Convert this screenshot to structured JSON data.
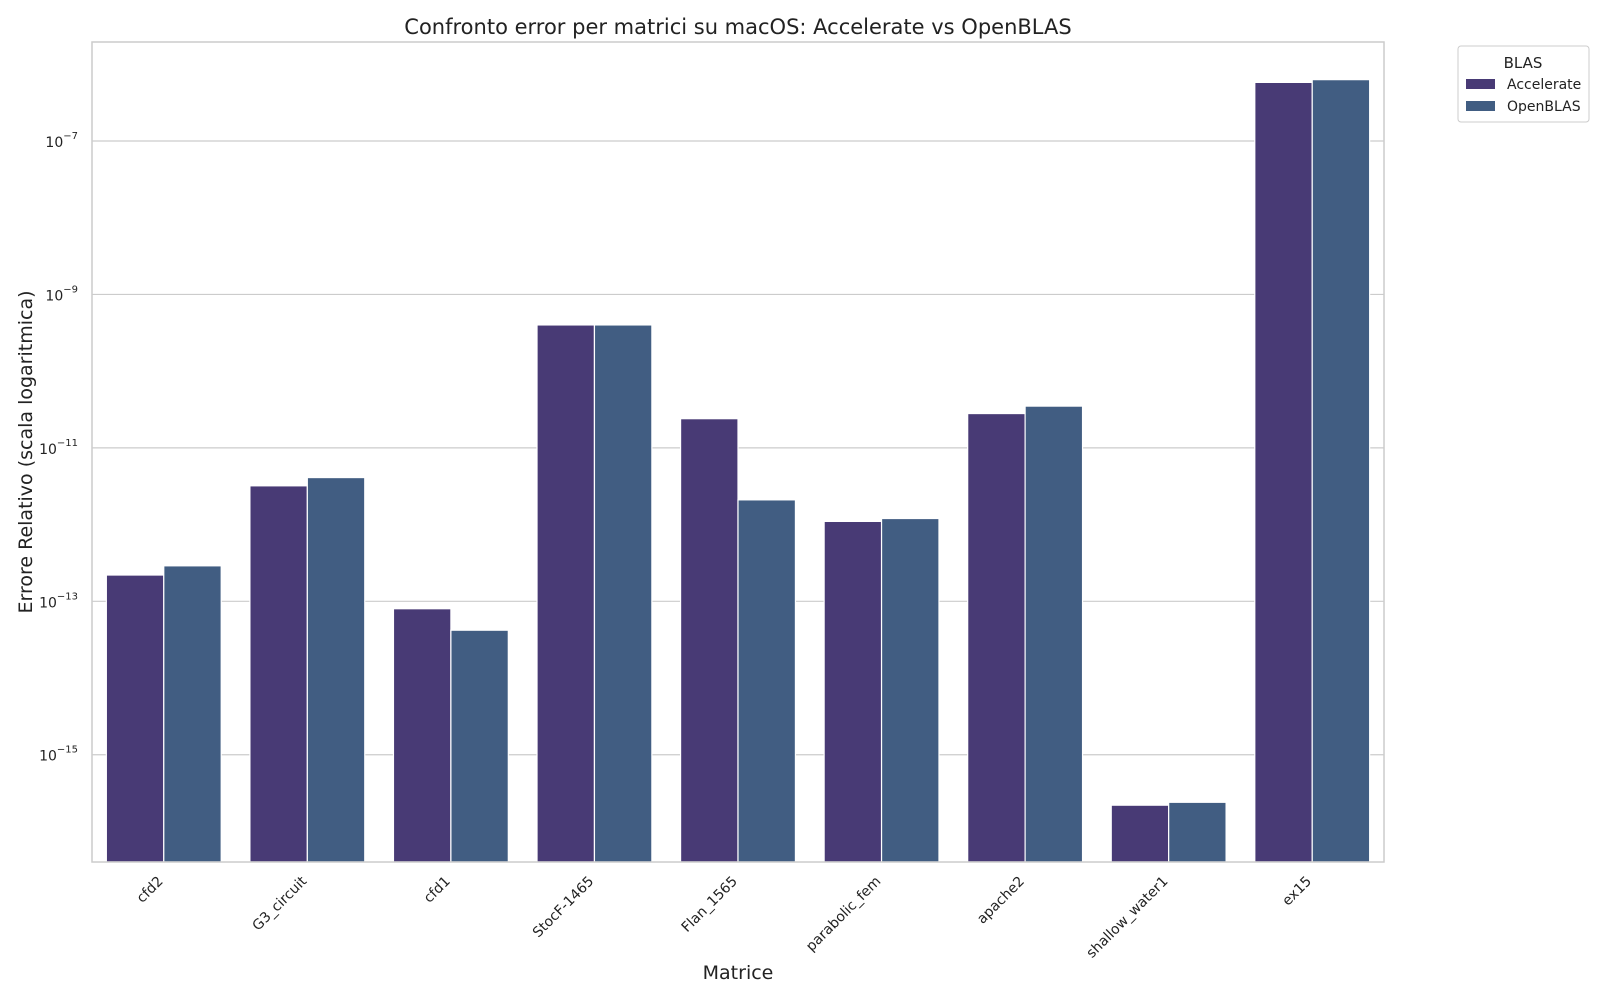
{
  "chart_data": {
    "type": "bar",
    "title": "Confronto error per matrici su macOS: Accelerate vs OpenBLAS",
    "xlabel": "Matrice",
    "ylabel": "Errore Relativo (scala logaritmica)",
    "yscale": "log",
    "ylim": [
      4e-17,
      1.95e-06
    ],
    "yticks": [
      {
        "value": 1e-15,
        "base": "10",
        "exp": "−15"
      },
      {
        "value": 1e-13,
        "base": "10",
        "exp": "−13"
      },
      {
        "value": 1e-11,
        "base": "10",
        "exp": "−11"
      },
      {
        "value": 1e-09,
        "base": "10",
        "exp": "−9"
      },
      {
        "value": 1e-07,
        "base": "10",
        "exp": "−7"
      }
    ],
    "grid": true,
    "categories": [
      "cfd2",
      "G3_circuit",
      "cfd1",
      "StocF-1465",
      "Flan_1565",
      "parabolic_fem",
      "apache2",
      "shallow_water1",
      "ex15"
    ],
    "series": [
      {
        "name": "Accelerate",
        "color": "#483a75",
        "values": [
          2.2e-13,
          3.2e-12,
          8e-14,
          4e-10,
          2.4e-11,
          1.1e-12,
          2.8e-11,
          2.2e-16,
          5.8e-07
        ]
      },
      {
        "name": "OpenBLAS",
        "color": "#415d82",
        "values": [
          2.9e-13,
          4.1e-12,
          4.2e-14,
          4e-10,
          2.1e-12,
          1.2e-12,
          3.5e-11,
          2.4e-16,
          6.3e-07
        ]
      }
    ],
    "legend": {
      "title": "BLAS",
      "placement": "outside top-right"
    }
  }
}
